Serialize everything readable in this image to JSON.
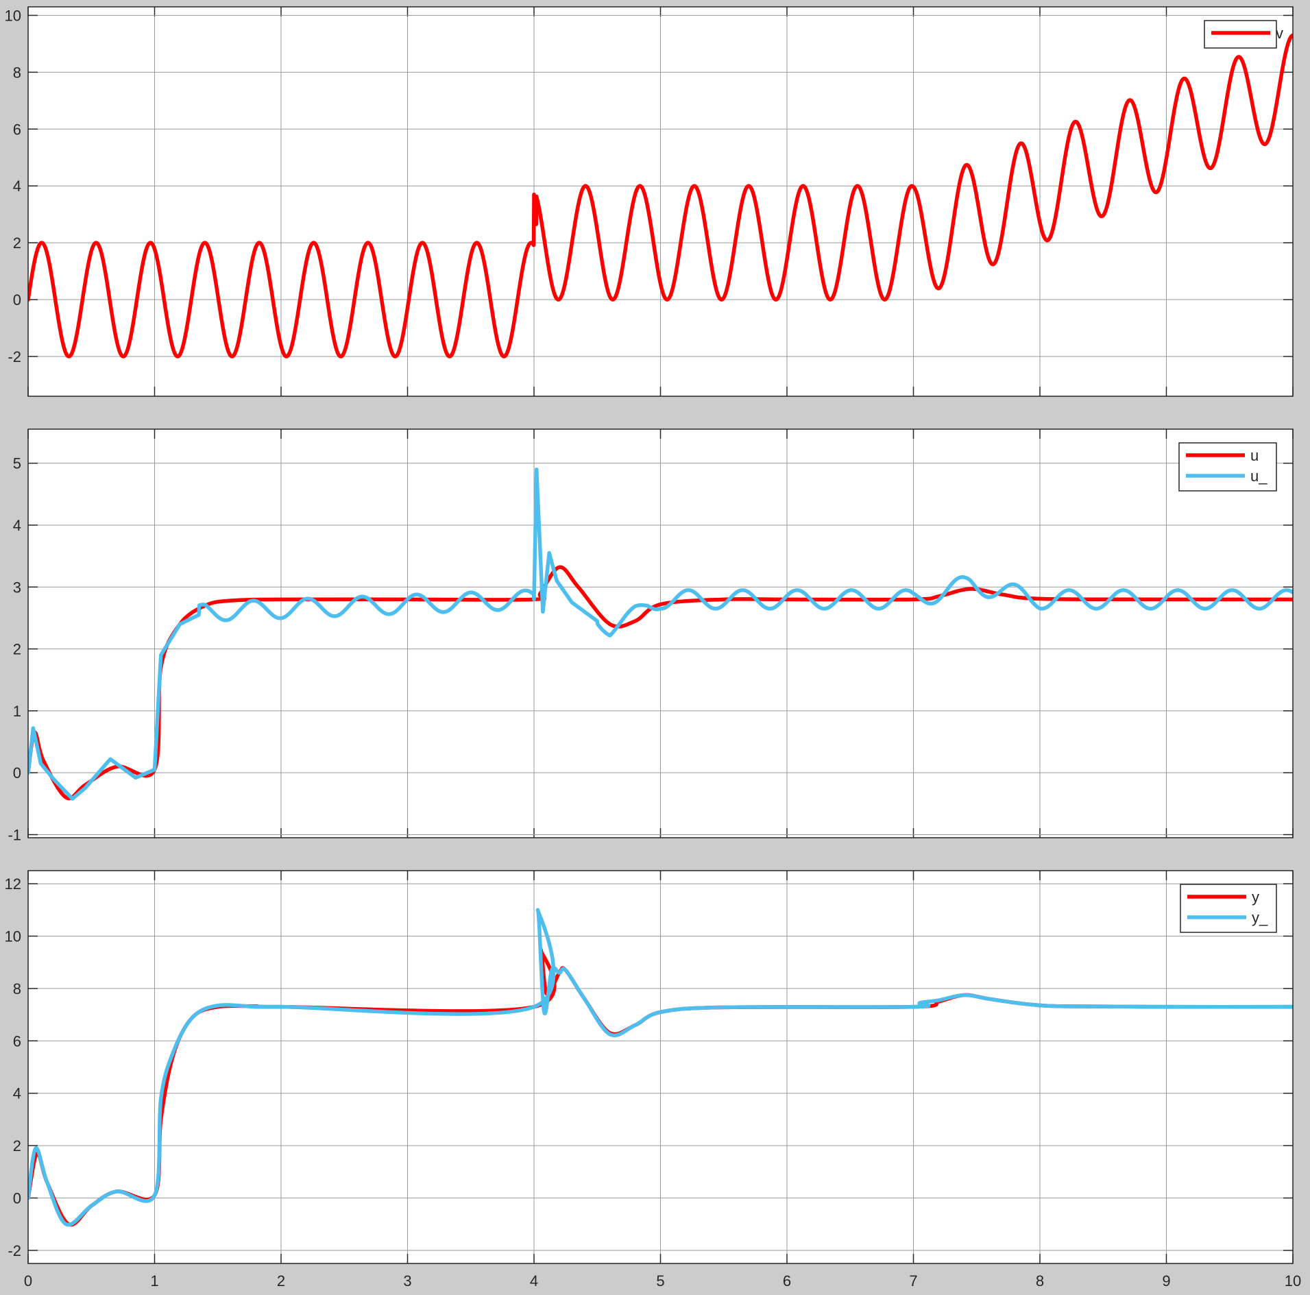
{
  "colors": {
    "figure_bg": "#cccccc",
    "axes_bg": "#ffffff",
    "grid": "#9a9a9a",
    "axis": "#262626",
    "red": "#ff0000",
    "cyan": "#4dbeee"
  },
  "chart_data": [
    {
      "type": "line",
      "title": "",
      "xlabel": "",
      "ylabel": "",
      "xlim": [
        0,
        10
      ],
      "ylim": [
        -3.4,
        10.3
      ],
      "xticks": [
        "0",
        "1",
        "2",
        "3",
        "4",
        "5",
        "6",
        "7",
        "8",
        "9",
        "10"
      ],
      "yticks": [
        "-2",
        "0",
        "2",
        "4",
        "6",
        "8",
        "10"
      ],
      "grid": true,
      "legend": "top-right",
      "series": [
        {
          "name": "v",
          "color": "#ff0000",
          "x": [
            0,
            0.3,
            1.0,
            2.0,
            3.0,
            3.8,
            3.99,
            4.0,
            4.03,
            4.5,
            5.0,
            6.0,
            6.9,
            7.0,
            7.4,
            7.8,
            8.2,
            8.6,
            9.0,
            9.4,
            9.8,
            10.0
          ],
          "y": [
            0,
            -2,
            2,
            -2,
            2,
            -2,
            2,
            3.7,
            2.0,
            2.0,
            2.0,
            2.0,
            2.0,
            2.0,
            2.7,
            3.7,
            4.8,
            5.8,
            6.6,
            7.4,
            9.3,
            9.8
          ],
          "oscillation": {
            "period": 0.43,
            "amplitude_before_7": 2,
            "amplitude_after_7": 1.7
          }
        }
      ]
    },
    {
      "type": "line",
      "title": "",
      "xlabel": "",
      "ylabel": "",
      "xlim": [
        0,
        10
      ],
      "ylim": [
        -1.05,
        5.55
      ],
      "xticks": [
        "0",
        "1",
        "2",
        "3",
        "4",
        "5",
        "6",
        "7",
        "8",
        "9",
        "10"
      ],
      "yticks": [
        "-1",
        "0",
        "1",
        "2",
        "3",
        "4",
        "5"
      ],
      "grid": true,
      "legend": "top-right",
      "series": [
        {
          "name": "u",
          "color": "#ff0000",
          "x": [
            0,
            0.05,
            0.12,
            0.3,
            0.45,
            0.7,
            1.0,
            1.05,
            1.2,
            1.4,
            1.6,
            2.0,
            3.0,
            4.0,
            4.05,
            4.2,
            4.35,
            4.6,
            4.8,
            5.0,
            5.5,
            6.0,
            7.0,
            7.2,
            7.45,
            7.7,
            8.0,
            9.0,
            10.0
          ],
          "y": [
            0.0,
            0.65,
            0.2,
            -0.4,
            -0.2,
            0.1,
            0.05,
            1.7,
            2.4,
            2.7,
            2.78,
            2.8,
            2.8,
            2.8,
            2.9,
            3.32,
            3.0,
            2.4,
            2.45,
            2.72,
            2.8,
            2.8,
            2.8,
            2.85,
            2.97,
            2.88,
            2.81,
            2.8,
            2.8
          ]
        },
        {
          "name": "u_",
          "color": "#4dbeee",
          "x": [
            0,
            0.04,
            0.1,
            0.2,
            0.35,
            0.45,
            0.65,
            0.85,
            1.0,
            1.05,
            1.2,
            1.4,
            4.0,
            4.02,
            4.07,
            4.12,
            4.18,
            4.3,
            4.6,
            4.8,
            5.0,
            7.0,
            7.45,
            8.0,
            10.0
          ],
          "y": [
            0.0,
            0.72,
            0.15,
            -0.1,
            -0.42,
            -0.25,
            0.22,
            -0.08,
            0.05,
            1.9,
            2.4,
            2.6,
            2.8,
            4.9,
            2.6,
            3.55,
            3.1,
            2.75,
            2.3,
            2.6,
            2.8,
            2.8,
            3.05,
            2.8,
            2.8
          ],
          "oscillation": {
            "period": 0.43,
            "amplitude": 0.15
          }
        }
      ]
    },
    {
      "type": "line",
      "title": "",
      "xlabel": "",
      "ylabel": "",
      "xlim": [
        0,
        10
      ],
      "ylim": [
        -2.5,
        12.5
      ],
      "xticks": [
        "0",
        "1",
        "2",
        "3",
        "4",
        "5",
        "6",
        "7",
        "8",
        "9",
        "10"
      ],
      "yticks": [
        "-2",
        "0",
        "2",
        "4",
        "6",
        "8",
        "10",
        "12"
      ],
      "grid": true,
      "legend": "top-right",
      "series": [
        {
          "name": "y",
          "color": "#ff0000",
          "x": [
            0,
            0.07,
            0.15,
            0.32,
            0.5,
            0.7,
            1.0,
            1.05,
            1.15,
            1.3,
            1.5,
            1.8,
            2.0,
            4.0,
            4.05,
            4.1,
            4.2,
            4.25,
            4.4,
            4.6,
            4.8,
            5.0,
            5.5,
            7.0,
            7.2,
            7.4,
            7.6,
            7.9,
            8.2,
            9.0,
            10.0
          ],
          "y": [
            0,
            1.7,
            0.6,
            -1.0,
            -0.3,
            0.25,
            0.1,
            3.0,
            5.5,
            6.9,
            7.3,
            7.32,
            7.3,
            7.3,
            9.5,
            7.8,
            8.6,
            8.7,
            7.6,
            6.3,
            6.6,
            7.1,
            7.28,
            7.3,
            7.5,
            7.75,
            7.6,
            7.4,
            7.32,
            7.3,
            7.3
          ]
        },
        {
          "name": "y_",
          "color": "#4dbeee",
          "x": [
            0,
            0.06,
            0.15,
            0.3,
            0.5,
            0.7,
            1.0,
            1.05,
            1.15,
            1.3,
            1.5,
            1.8,
            2.0,
            4.0,
            4.03,
            4.08,
            4.14,
            4.2,
            4.25,
            4.4,
            4.6,
            4.8,
            5.0,
            5.5,
            7.0,
            7.05,
            7.2,
            7.4,
            7.6,
            7.9,
            8.2,
            9.0,
            10.0
          ],
          "y": [
            0,
            1.9,
            0.6,
            -1.0,
            -0.3,
            0.25,
            0.1,
            3.8,
            5.6,
            6.9,
            7.35,
            7.3,
            7.3,
            7.3,
            11.0,
            7.1,
            8.7,
            8.6,
            8.7,
            7.6,
            6.25,
            6.6,
            7.1,
            7.28,
            7.3,
            7.45,
            7.55,
            7.75,
            7.6,
            7.4,
            7.32,
            7.3,
            7.3
          ]
        }
      ]
    }
  ]
}
